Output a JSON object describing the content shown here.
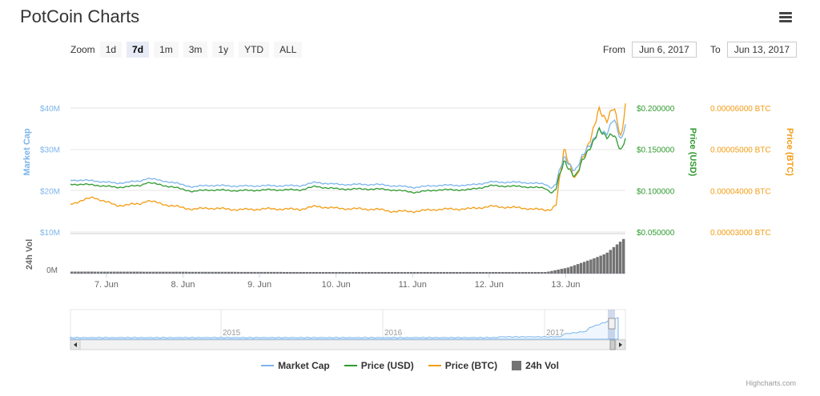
{
  "title": "PotCoin Charts",
  "zoom": {
    "label": "Zoom",
    "buttons": [
      "1d",
      "7d",
      "1m",
      "3m",
      "1y",
      "YTD",
      "ALL"
    ],
    "active": "7d"
  },
  "range": {
    "from_label": "From",
    "from_value": "Jun 6, 2017",
    "to_label": "To",
    "to_value": "Jun 13, 2017"
  },
  "colors": {
    "market_cap": "#7cb5ec",
    "price_usd": "#2f9a2f",
    "price_btc": "#f39c12",
    "volume": "#737373"
  },
  "chart_data": {
    "type": "line",
    "x_axis": {
      "labels": [
        "7. Jun",
        "8. Jun",
        "9. Jun",
        "10. Jun",
        "11. Jun",
        "12. Jun",
        "13. Jun"
      ],
      "range": [
        "2017-06-06T13:00",
        "2017-06-13T19:00"
      ]
    },
    "y_axes": {
      "market_cap": {
        "title": "Market Cap",
        "ticks": [
          "$10M",
          "$20M",
          "$30M",
          "$40M"
        ],
        "range": [
          10000000,
          45000000
        ]
      },
      "price_usd": {
        "title": "Price (USD)",
        "ticks": [
          "$0.050000",
          "$0.100000",
          "$0.150000",
          "$0.200000"
        ],
        "range": [
          0.05,
          0.2
        ]
      },
      "price_btc": {
        "title": "Price (BTC)",
        "ticks": [
          "0.00003000 BTC",
          "0.00004000 BTC",
          "0.00005000 BTC",
          "0.00006000 BTC"
        ],
        "range": [
          3e-05,
          6e-05
        ]
      },
      "volume": {
        "title": "24h Vol",
        "ticks": [
          "0M"
        ]
      }
    },
    "series": [
      {
        "name": "Market Cap",
        "points": [
          [
            0,
            22.6
          ],
          [
            0.3,
            22.4
          ],
          [
            0.6,
            21.8
          ],
          [
            0.9,
            22.3
          ],
          [
            1.0,
            23.0
          ],
          [
            1.3,
            22.1
          ],
          [
            1.6,
            20.9
          ],
          [
            1.8,
            21.3
          ],
          [
            2.2,
            21.1
          ],
          [
            2.6,
            21.2
          ],
          [
            3.0,
            21.2
          ],
          [
            3.2,
            22.0
          ],
          [
            3.5,
            21.5
          ],
          [
            4.0,
            21.5
          ],
          [
            4.2,
            21.2
          ],
          [
            4.5,
            20.8
          ],
          [
            4.8,
            21.3
          ],
          [
            5.2,
            21.3
          ],
          [
            5.5,
            22.1
          ],
          [
            5.9,
            22.0
          ],
          [
            6.2,
            21.6
          ],
          [
            6.3,
            20.6
          ],
          [
            6.35,
            22.0
          ],
          [
            6.45,
            28.0
          ],
          [
            6.6,
            25.0
          ],
          [
            6.75,
            30.0
          ],
          [
            6.9,
            35.0
          ],
          [
            7.0,
            33.0
          ],
          [
            7.1,
            38.0
          ],
          [
            7.2,
            32.0
          ],
          [
            7.25,
            36.0
          ]
        ]
      },
      {
        "name": "Price (USD)",
        "points": [
          [
            0,
            0.108
          ],
          [
            0.3,
            0.107
          ],
          [
            0.6,
            0.104
          ],
          [
            0.9,
            0.106
          ],
          [
            1.0,
            0.11
          ],
          [
            1.3,
            0.105
          ],
          [
            1.6,
            0.099
          ],
          [
            1.8,
            0.101
          ],
          [
            2.2,
            0.1
          ],
          [
            2.6,
            0.101
          ],
          [
            3.0,
            0.101
          ],
          [
            3.2,
            0.105
          ],
          [
            3.5,
            0.102
          ],
          [
            4.0,
            0.102
          ],
          [
            4.2,
            0.101
          ],
          [
            4.5,
            0.098
          ],
          [
            4.8,
            0.101
          ],
          [
            5.2,
            0.101
          ],
          [
            5.5,
            0.106
          ],
          [
            5.9,
            0.105
          ],
          [
            6.2,
            0.103
          ],
          [
            6.3,
            0.097
          ],
          [
            6.35,
            0.104
          ],
          [
            6.45,
            0.135
          ],
          [
            6.6,
            0.118
          ],
          [
            6.75,
            0.145
          ],
          [
            6.9,
            0.175
          ],
          [
            7.0,
            0.162
          ],
          [
            7.1,
            0.17
          ],
          [
            7.2,
            0.148
          ],
          [
            7.25,
            0.163
          ]
        ]
      },
      {
        "name": "Price (BTC)",
        "points": [
          [
            0,
            3.68e-05
          ],
          [
            0.3,
            3.84e-05
          ],
          [
            0.6,
            3.64e-05
          ],
          [
            0.9,
            3.68e-05
          ],
          [
            1.0,
            3.76e-05
          ],
          [
            1.3,
            3.64e-05
          ],
          [
            1.6,
            3.55e-05
          ],
          [
            1.8,
            3.58e-05
          ],
          [
            2.2,
            3.54e-05
          ],
          [
            2.6,
            3.56e-05
          ],
          [
            3.0,
            3.55e-05
          ],
          [
            3.2,
            3.62e-05
          ],
          [
            3.5,
            3.57e-05
          ],
          [
            4.0,
            3.55e-05
          ],
          [
            4.2,
            3.5e-05
          ],
          [
            4.5,
            3.5e-05
          ],
          [
            4.8,
            3.55e-05
          ],
          [
            5.2,
            3.56e-05
          ],
          [
            5.5,
            3.62e-05
          ],
          [
            5.9,
            3.58e-05
          ],
          [
            6.2,
            3.53e-05
          ],
          [
            6.3,
            3.56e-05
          ],
          [
            6.35,
            3.7e-05
          ],
          [
            6.45,
            5e-05
          ],
          [
            6.6,
            4.3e-05
          ],
          [
            6.75,
            5e-05
          ],
          [
            6.9,
            6e-05
          ],
          [
            7.0,
            5.6e-05
          ],
          [
            7.1,
            6.1e-05
          ],
          [
            7.2,
            5.25e-05
          ],
          [
            7.25,
            6.1e-05
          ]
        ]
      },
      {
        "name": "24h Vol",
        "points": [
          [
            0,
            0.05
          ],
          [
            6.2,
            0.03
          ],
          [
            6.5,
            0.15
          ],
          [
            6.8,
            0.35
          ],
          [
            7.0,
            0.5
          ],
          [
            7.25,
            0.9
          ]
        ]
      }
    ]
  },
  "navigator": {
    "year_labels": [
      "2015",
      "2016",
      "2017"
    ]
  },
  "legend": [
    "Market Cap",
    "Price (USD)",
    "Price (BTC)",
    "24h Vol"
  ],
  "credits": "Highcharts.com"
}
